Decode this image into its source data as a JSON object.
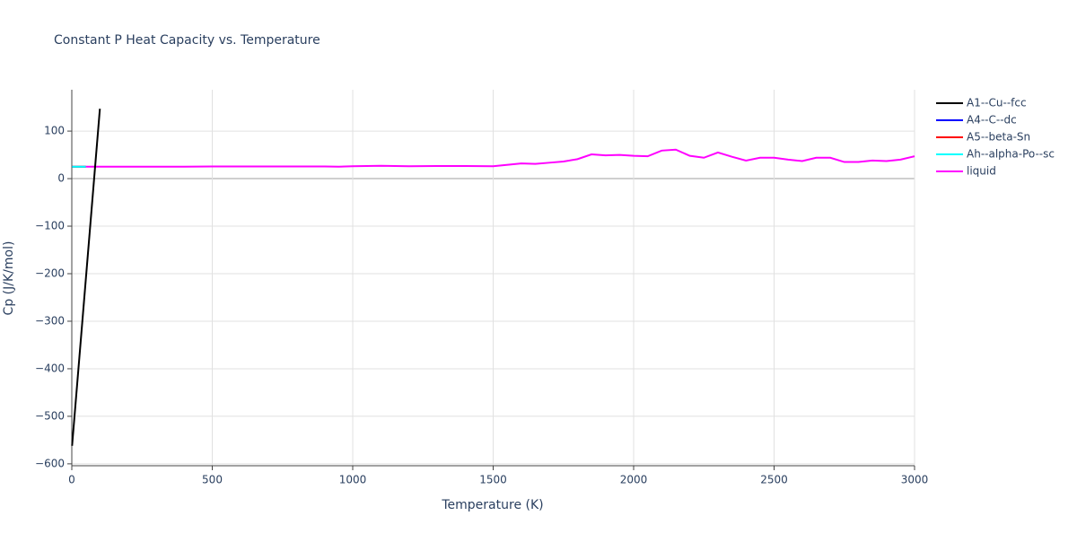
{
  "chart_data": {
    "type": "line",
    "title": "Constant P Heat Capacity vs. Temperature",
    "x_label": "Temperature (K)",
    "y_label": "Cp (J/K/mol)",
    "xlim": [
      0,
      3000
    ],
    "xticks": [
      0,
      500,
      1000,
      1500,
      2000,
      2500,
      3000
    ],
    "ylim": [
      -604,
      187
    ],
    "yticks": [
      {
        "value": -600,
        "label": "−600"
      },
      {
        "value": -500,
        "label": "−500"
      },
      {
        "value": -400,
        "label": "−400"
      },
      {
        "value": -300,
        "label": "−300"
      },
      {
        "value": -200,
        "label": "−200"
      },
      {
        "value": -100,
        "label": "−100"
      },
      0,
      100
    ],
    "grid": true,
    "legend": "right",
    "series": [
      {
        "name": "A1--Cu--fcc",
        "color": "#000000",
        "x": [
          1,
          100
        ],
        "values": [
          -562,
          147
        ]
      },
      {
        "name": "A4--C--dc",
        "color": "#0000ff",
        "x": [
          1,
          50
        ],
        "values": [
          25,
          25
        ]
      },
      {
        "name": "A5--beta-Sn",
        "color": "#ff0000",
        "x": [
          1,
          50
        ],
        "values": [
          25,
          25
        ]
      },
      {
        "name": "Ah--alpha-Po--sc",
        "color": "#00ffff",
        "x": [
          1,
          50
        ],
        "values": [
          25,
          25
        ]
      },
      {
        "name": "liquid",
        "color": "#ff00ff",
        "x": [
          50,
          100,
          200,
          300,
          400,
          500,
          600,
          700,
          800,
          900,
          950,
          1000,
          1100,
          1200,
          1300,
          1400,
          1500,
          1600,
          1650,
          1700,
          1750,
          1800,
          1850,
          1900,
          1950,
          2000,
          2050,
          2100,
          2150,
          2200,
          2250,
          2300,
          2350,
          2400,
          2450,
          2500,
          2550,
          2600,
          2650,
          2700,
          2750,
          2800,
          2850,
          2900,
          2950,
          3000
        ],
        "values": [
          25,
          25,
          25,
          25,
          25,
          25.5,
          25.5,
          25.5,
          25.5,
          25.5,
          25,
          26,
          27,
          26,
          26.5,
          26.5,
          26,
          32,
          31,
          33.5,
          36,
          41,
          51,
          49,
          50,
          48,
          47,
          59,
          61,
          48,
          44,
          55,
          46,
          38,
          44,
          44,
          40,
          37,
          44,
          44,
          35,
          35,
          38,
          37,
          40,
          47
        ]
      }
    ]
  }
}
